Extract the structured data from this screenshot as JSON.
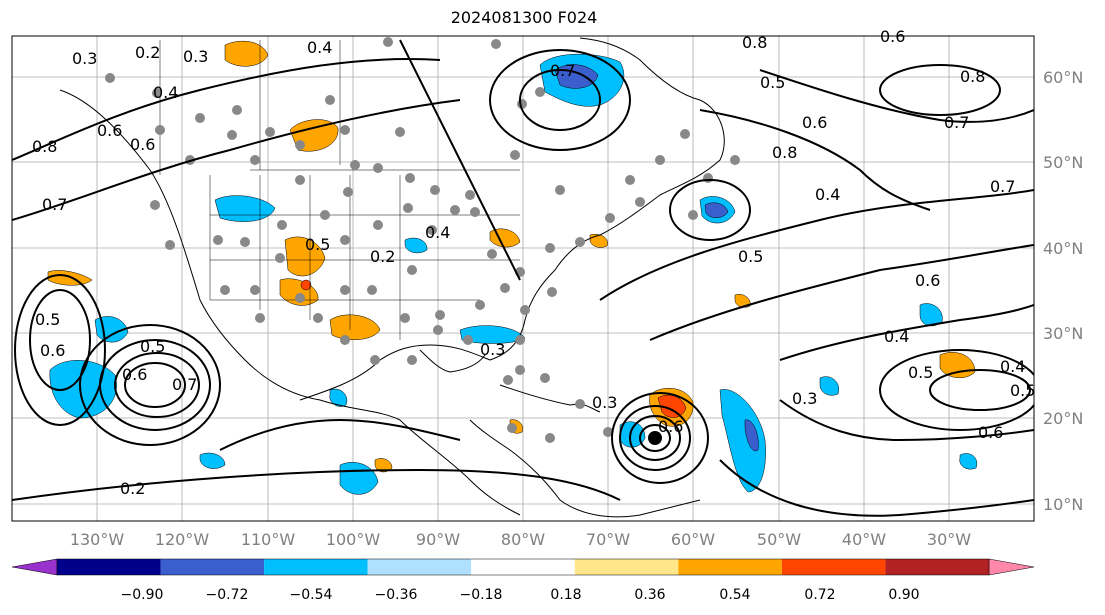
{
  "title": "2024081300 F024",
  "lon_labels": [
    "130°W",
    "120°W",
    "110°W",
    "100°W",
    "90°W",
    "80°W",
    "70°W",
    "60°W",
    "50°W",
    "40°W",
    "30°W"
  ],
  "lat_labels": [
    "60°N",
    "50°N",
    "40°N",
    "30°N",
    "20°N",
    "10°N"
  ],
  "contour_labels": [
    "0.3",
    "0.2",
    "0.3",
    "0.4",
    "0.4",
    "0.7",
    "0.8",
    "0.6",
    "0.6",
    "0.8",
    "0.7",
    "0.8",
    "0.6",
    "0.5",
    "0.7",
    "0.6",
    "0.4",
    "0.7",
    "0.5",
    "0.3",
    "0.3",
    "0.2",
    "0.2",
    "0.3",
    "0.5",
    "0.6",
    "0.4",
    "0.6",
    "0.5",
    "0.4",
    "0.8",
    "0.5",
    "0.6",
    "0.7",
    "0.6",
    "0.5",
    "0.4",
    "0.5",
    "0.6"
  ],
  "colorbar": {
    "ticks": [
      "−0.90",
      "−0.72",
      "−0.54",
      "−0.36",
      "−0.18",
      "0.18",
      "0.36",
      "0.54",
      "0.72",
      "0.90"
    ],
    "colors": [
      "#9932cc",
      "#00008b",
      "#3a5fcd",
      "#00bfff",
      "#b0e0ff",
      "#ffffff",
      "#ffe68a",
      "#ffa500",
      "#ff4500",
      "#b22222",
      "#ff88aa"
    ]
  }
}
